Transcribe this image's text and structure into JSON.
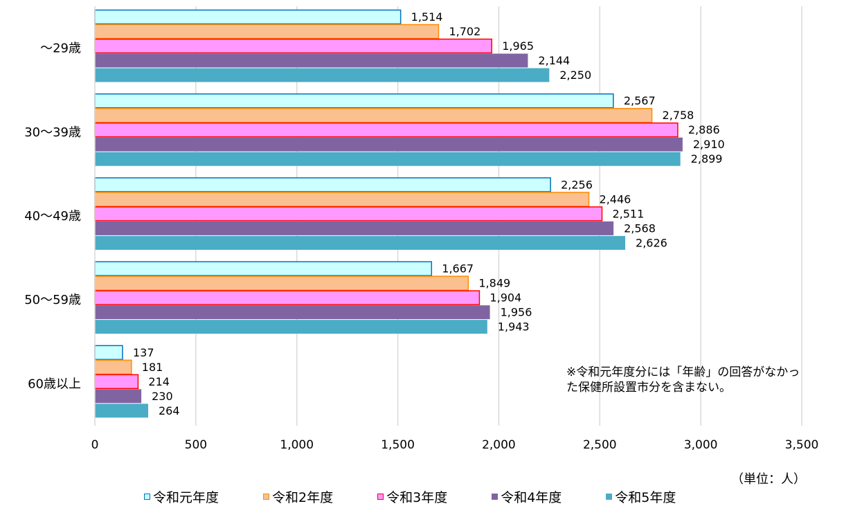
{
  "chart_data": {
    "type": "bar",
    "orientation": "horizontal",
    "categories": [
      "～29歳",
      "30～39歳",
      "40～49歳",
      "50～59歳",
      "60歳以上"
    ],
    "series": [
      {
        "name": "令和元年度",
        "values": [
          1514,
          2567,
          2256,
          1667,
          137
        ],
        "fill": "#ccffff",
        "stroke": "#0070c0"
      },
      {
        "name": "令和2年度",
        "values": [
          1702,
          2758,
          2446,
          1849,
          181
        ],
        "fill": "#fac090",
        "stroke": "#ff8c00"
      },
      {
        "name": "令和3年度",
        "values": [
          1965,
          2886,
          2511,
          1904,
          214
        ],
        "fill": "#ff99ff",
        "stroke": "#ff0000"
      },
      {
        "name": "令和4年度",
        "values": [
          2144,
          2910,
          2568,
          1956,
          230
        ],
        "fill": "#8064a2",
        "stroke": "#8064a2"
      },
      {
        "name": "令和5年度",
        "values": [
          2250,
          2899,
          2626,
          1943,
          264
        ],
        "fill": "#4bacc6",
        "stroke": "#4bacc6"
      }
    ],
    "value_labels": [
      [
        "1,514",
        "2,567",
        "2,256",
        "1,667",
        "137"
      ],
      [
        "1,702",
        "2,758",
        "2,446",
        "1,849",
        "181"
      ],
      [
        "1,965",
        "2,886",
        "2,511",
        "1,904",
        "214"
      ],
      [
        "2,144",
        "2,910",
        "2,568",
        "1,956",
        "230"
      ],
      [
        "2,250",
        "2,899",
        "2,626",
        "1,943",
        "264"
      ]
    ],
    "xlim": [
      0,
      3500
    ],
    "xticks": [
      0,
      500,
      1000,
      1500,
      2000,
      2500,
      3000,
      3500
    ],
    "xtick_labels": [
      "0",
      "500",
      "1,000",
      "1,500",
      "2,000",
      "2,500",
      "3,000",
      "3,500"
    ],
    "grid": true,
    "legend_position": "bottom"
  },
  "annotation": {
    "line1": "※令和元年度分には「年齢」の回答がなかっ",
    "line2": "た保健所設置市分を含まない。"
  },
  "unit_label": "（単位：人）"
}
